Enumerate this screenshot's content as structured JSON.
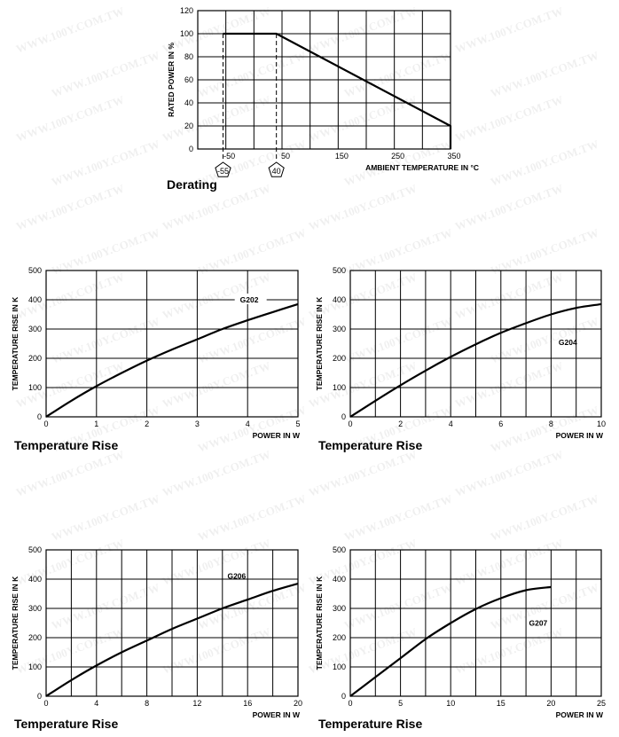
{
  "watermark": "WWW.100Y.COM.TW",
  "chart_data": [
    {
      "id": "derating",
      "type": "line",
      "title": "Derating",
      "xlabel": "AMBIENT TEMPERATURE IN °C",
      "ylabel": "RATED POWER IN %",
      "xlim": [
        -100,
        350
      ],
      "ylim": [
        0,
        120
      ],
      "x_grid_step": 50,
      "y_grid_step": 20,
      "grid": true,
      "xticks": [
        -50,
        50,
        150,
        250,
        350
      ],
      "yticks": [
        0,
        20,
        40,
        60,
        80,
        100,
        120
      ],
      "series": [
        {
          "name": "derating",
          "x": [
            -55,
            40,
            350,
            350
          ],
          "y": [
            100,
            100,
            20,
            0
          ]
        }
      ],
      "markers": [
        {
          "label": "-55",
          "x": -55
        },
        {
          "label": "40",
          "x": 40
        }
      ]
    },
    {
      "id": "g202",
      "type": "line",
      "title": "Temperature Rise",
      "xlabel": "POWER IN W",
      "ylabel": "TEMPERATURE RISE IN K",
      "xlim": [
        0,
        5
      ],
      "ylim": [
        0,
        500
      ],
      "x_grid_step": 1,
      "y_grid_step": 100,
      "grid": true,
      "xticks": [
        0,
        1,
        2,
        3,
        4,
        5
      ],
      "yticks": [
        0,
        100,
        200,
        300,
        400,
        500
      ],
      "series": [
        {
          "name": "G202",
          "x": [
            0,
            0.5,
            1,
            1.5,
            2,
            2.5,
            3,
            3.5,
            4,
            4.5,
            5
          ],
          "y": [
            0,
            55,
            105,
            150,
            192,
            230,
            265,
            300,
            330,
            358,
            385
          ]
        }
      ],
      "annotation": {
        "text": "G202",
        "x": 3.85,
        "y": 400,
        "boxed": true
      }
    },
    {
      "id": "g204",
      "type": "line",
      "title": "Temperature Rise",
      "xlabel": "POWER IN W",
      "ylabel": "TEMPERATURE RISE IN K",
      "xlim": [
        0,
        10
      ],
      "ylim": [
        0,
        500
      ],
      "x_grid_step": 1,
      "y_grid_step": 100,
      "grid": true,
      "xticks": [
        0,
        2,
        4,
        6,
        8,
        10
      ],
      "yticks": [
        0,
        100,
        200,
        300,
        400,
        500
      ],
      "series": [
        {
          "name": "G204",
          "x": [
            0,
            1,
            2,
            3,
            4,
            5,
            6,
            7,
            8,
            9,
            10
          ],
          "y": [
            0,
            55,
            108,
            158,
            205,
            248,
            287,
            320,
            350,
            372,
            385
          ]
        }
      ],
      "annotation": {
        "text": "G204",
        "x": 8.3,
        "y": 255,
        "boxed": false
      }
    },
    {
      "id": "g206",
      "type": "line",
      "title": "Temperature Rise",
      "xlabel": "POWER IN W",
      "ylabel": "TEMPERATURE RISE IN K",
      "xlim": [
        0,
        20
      ],
      "ylim": [
        0,
        500
      ],
      "x_grid_step": 2,
      "y_grid_step": 100,
      "grid": true,
      "xticks": [
        0,
        4,
        8,
        12,
        16,
        20
      ],
      "yticks": [
        0,
        100,
        200,
        300,
        400,
        500
      ],
      "series": [
        {
          "name": "G206",
          "x": [
            0,
            2,
            4,
            6,
            8,
            10,
            12,
            14,
            16,
            18,
            20
          ],
          "y": [
            0,
            55,
            105,
            150,
            190,
            230,
            265,
            300,
            330,
            360,
            385
          ]
        }
      ],
      "annotation": {
        "text": "G206",
        "x": 14.4,
        "y": 410,
        "boxed": false
      }
    },
    {
      "id": "g207",
      "type": "line",
      "title": "Temperature Rise",
      "xlabel": "POWER IN W",
      "ylabel": "TEMPERATURE RISE IN K",
      "xlim": [
        0,
        25
      ],
      "ylim": [
        0,
        500
      ],
      "x_grid_step": 2.5,
      "y_grid_step": 100,
      "grid": true,
      "xticks": [
        0,
        5,
        10,
        15,
        20,
        25
      ],
      "yticks": [
        0,
        100,
        200,
        300,
        400,
        500
      ],
      "series": [
        {
          "name": "G207",
          "x": [
            0,
            2.5,
            5,
            7.5,
            10,
            12.5,
            15,
            17.5,
            20
          ],
          "y": [
            0,
            65,
            130,
            195,
            250,
            298,
            335,
            362,
            373
          ]
        }
      ],
      "annotation": {
        "text": "G207",
        "x": 17.8,
        "y": 250,
        "boxed": false
      }
    }
  ]
}
